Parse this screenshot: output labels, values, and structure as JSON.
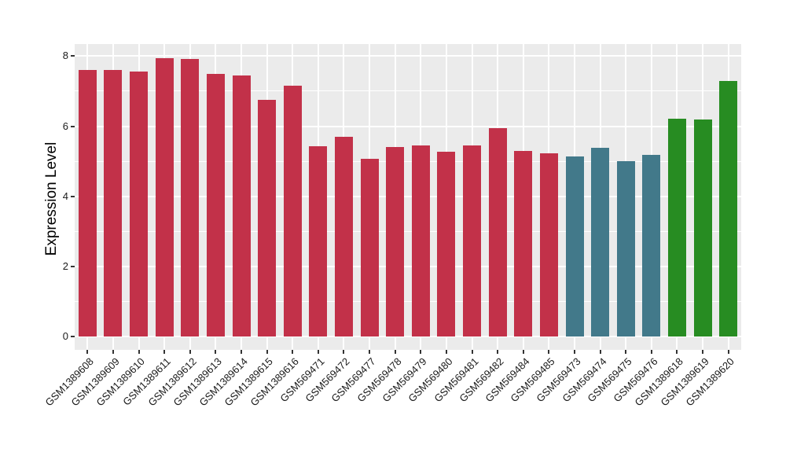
{
  "chart_data": {
    "type": "bar",
    "title": "",
    "xlabel": "",
    "ylabel": "Expression Level",
    "ylim": [
      0,
      8
    ],
    "yticks_major": [
      0,
      2,
      4,
      6,
      8
    ],
    "yticks_minor": [
      1,
      3,
      5,
      7
    ],
    "grid": true,
    "legend": "none",
    "panel_background": "#EBEBEB",
    "grid_color": "#FFFFFF",
    "axis_text_color": "#1a1a1a",
    "categories": [
      "GSM1389608",
      "GSM1389609",
      "GSM1389610",
      "GSM1389611",
      "GSM1389612",
      "GSM1389613",
      "GSM1389614",
      "GSM1389615",
      "GSM1389616",
      "GSM569471",
      "GSM569472",
      "GSM569477",
      "GSM569478",
      "GSM569479",
      "GSM569480",
      "GSM569481",
      "GSM569482",
      "GSM569484",
      "GSM569485",
      "GSM569473",
      "GSM569474",
      "GSM569475",
      "GSM569476",
      "GSM1389618",
      "GSM1389619",
      "GSM1389620"
    ],
    "values": [
      7.6,
      7.6,
      7.56,
      7.95,
      7.93,
      7.5,
      7.46,
      6.75,
      7.15,
      5.43,
      5.69,
      5.08,
      5.4,
      5.45,
      5.27,
      5.45,
      5.95,
      5.3,
      5.22,
      5.14,
      5.39,
      5.0,
      5.18,
      6.21,
      6.2,
      7.29
    ],
    "bar_groups": [
      "crimson",
      "crimson",
      "crimson",
      "crimson",
      "crimson",
      "crimson",
      "crimson",
      "crimson",
      "crimson",
      "crimson",
      "crimson",
      "crimson",
      "crimson",
      "crimson",
      "crimson",
      "crimson",
      "crimson",
      "crimson",
      "crimson",
      "teal",
      "teal",
      "teal",
      "teal",
      "green",
      "green",
      "green"
    ],
    "palette": {
      "crimson": "#C23149",
      "teal": "#42798A",
      "green": "#278C22"
    }
  }
}
